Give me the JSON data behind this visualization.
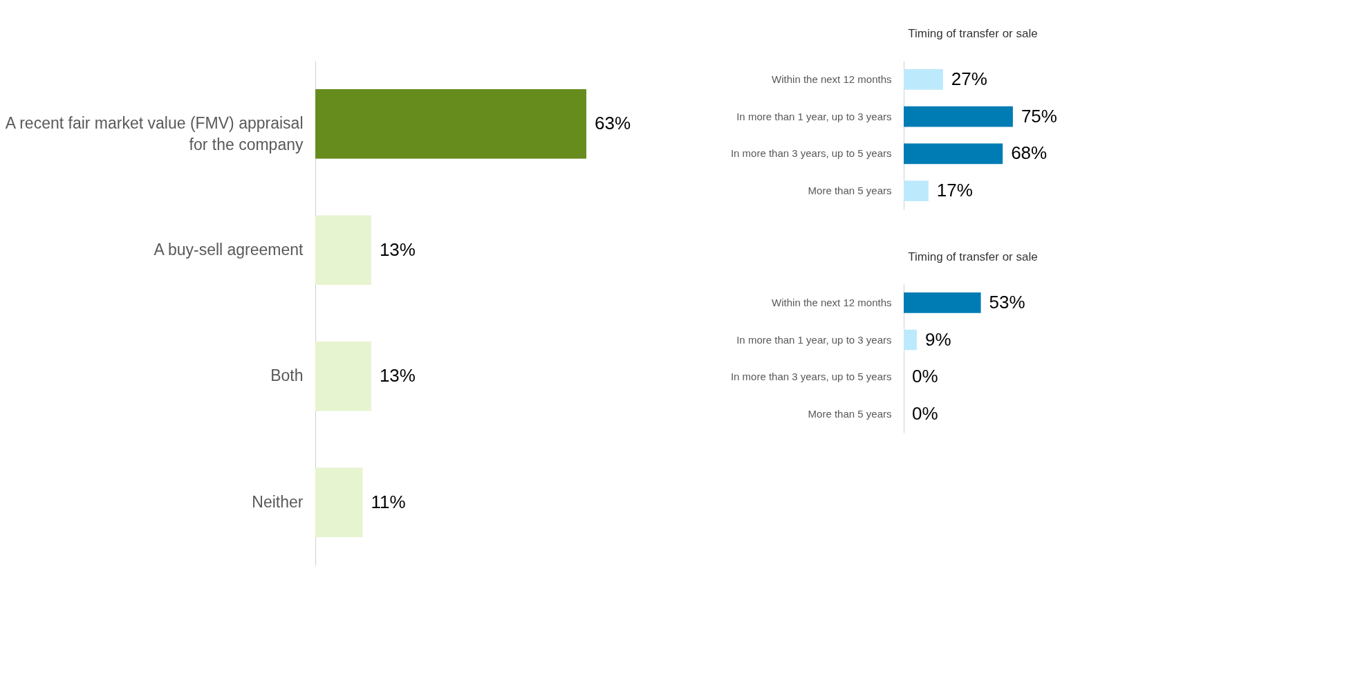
{
  "chart_data": [
    {
      "type": "bar",
      "orientation": "horizontal",
      "categories": [
        "A recent fair market value (FMV) appraisal for the company",
        "A buy-sell agreement",
        "Both",
        "Neither"
      ],
      "values": [
        63,
        13,
        13,
        11
      ],
      "colors": [
        "#668c1e",
        "#e6f4d0",
        "#e6f4d0",
        "#e6f4d0"
      ],
      "value_labels": [
        "63%",
        "13%",
        "13%",
        "11%"
      ],
      "grid": false,
      "legend": false,
      "tick_labels": "y"
    },
    {
      "type": "bar",
      "orientation": "horizontal",
      "title": "Timing of transfer or sale",
      "categories": [
        "Within the next 12 months",
        "In more than 1 year, up to 3 years",
        "In more than 3 years, up to 5 years",
        "More than 5 years"
      ],
      "values": [
        27,
        75,
        68,
        17
      ],
      "colors": [
        "#bde9fc",
        "#007cb4",
        "#007cb4",
        "#bde9fc"
      ],
      "value_labels": [
        "27%",
        "75%",
        "68%",
        "17%"
      ],
      "grid": false,
      "legend": false,
      "tick_labels": "y"
    },
    {
      "type": "bar",
      "orientation": "horizontal",
      "title": "Timing of transfer or sale",
      "categories": [
        "Within the next 12 months",
        "In more than 1 year, up to 3 years",
        "In more than 3 years, up to 5 years",
        "More than 5 years"
      ],
      "values": [
        53,
        9,
        0,
        0
      ],
      "colors": [
        "#007cb4",
        "#bde9fc",
        "#bde9fc",
        "#bde9fc"
      ],
      "value_labels": [
        "53%",
        "9%",
        "0%",
        "0%"
      ],
      "grid": false,
      "legend": false,
      "tick_labels": "y"
    }
  ]
}
